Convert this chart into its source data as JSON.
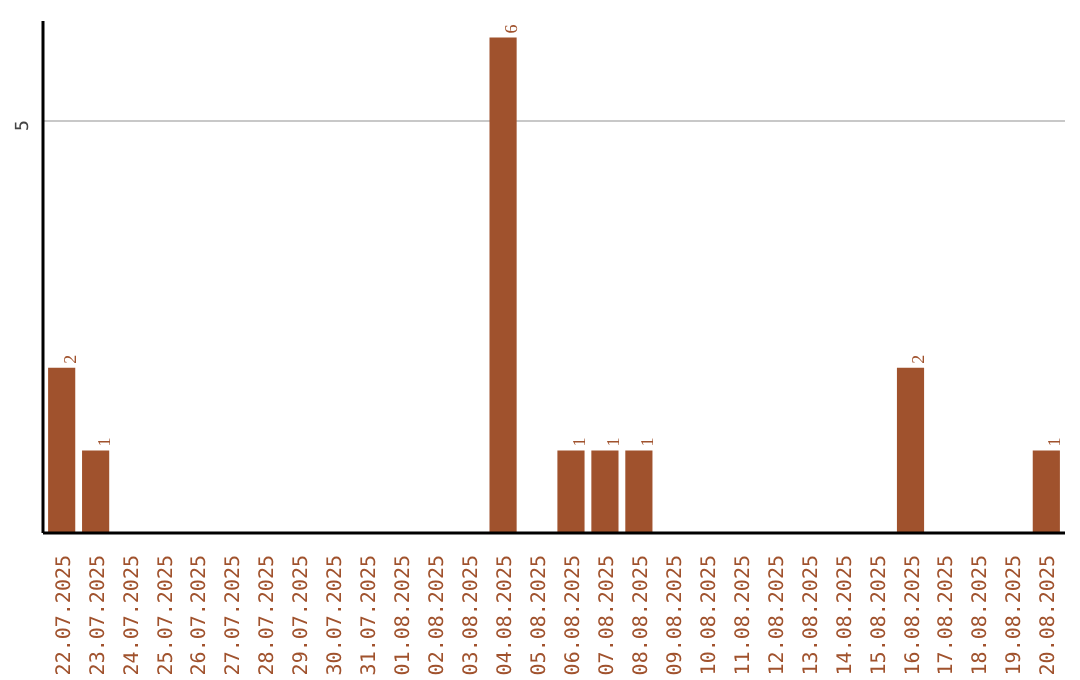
{
  "chart_data": {
    "type": "bar",
    "categories": [
      "22.07.2025",
      "23.07.2025",
      "24.07.2025",
      "25.07.2025",
      "26.07.2025",
      "27.07.2025",
      "28.07.2025",
      "29.07.2025",
      "30.07.2025",
      "31.07.2025",
      "01.08.2025",
      "02.08.2025",
      "03.08.2025",
      "04.08.2025",
      "05.08.2025",
      "06.08.2025",
      "07.08.2025",
      "08.08.2025",
      "09.08.2025",
      "10.08.2025",
      "11.08.2025",
      "12.08.2025",
      "13.08.2025",
      "14.08.2025",
      "15.08.2025",
      "16.08.2025",
      "17.08.2025",
      "18.08.2025",
      "19.08.2025",
      "20.08.2025"
    ],
    "values": [
      2,
      1,
      0,
      0,
      0,
      0,
      0,
      0,
      0,
      0,
      0,
      0,
      0,
      6,
      0,
      1,
      1,
      1,
      0,
      0,
      0,
      0,
      0,
      0,
      0,
      2,
      0,
      0,
      0,
      1
    ],
    "value_labels": [
      "2",
      "1",
      null,
      null,
      null,
      null,
      null,
      null,
      null,
      null,
      null,
      null,
      null,
      "6",
      null,
      "1",
      "1",
      "1",
      null,
      null,
      null,
      null,
      null,
      null,
      null,
      "2",
      null,
      null,
      null,
      "1"
    ],
    "color": "#a0522d",
    "ylim": [
      0,
      6.2
    ],
    "yticks": [
      5
    ],
    "grid": "y"
  }
}
